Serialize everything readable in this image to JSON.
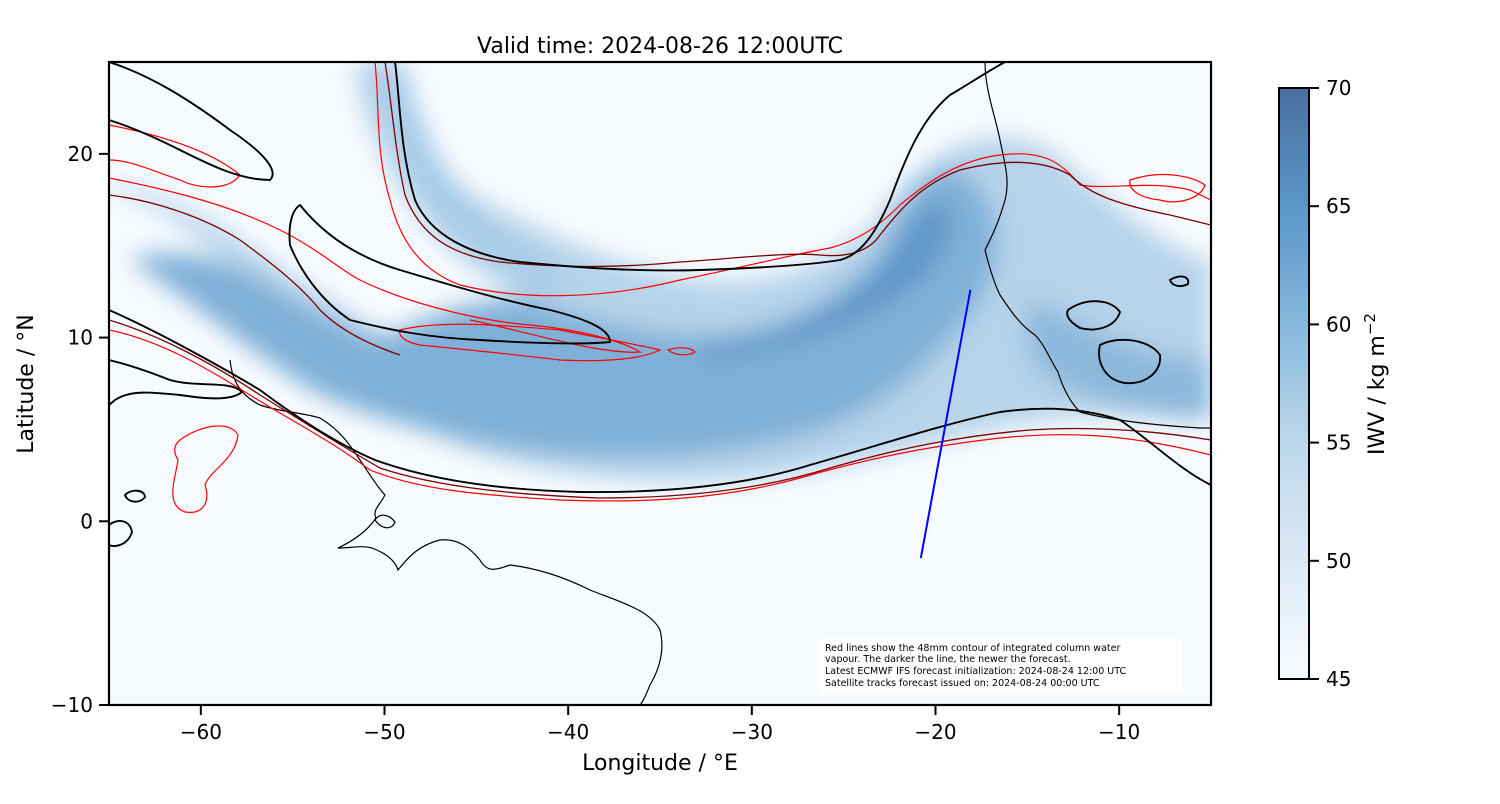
{
  "title": "Valid time: 2024-08-26 12:00UTC",
  "x_axis": {
    "label": "Longitude / °E",
    "range": [
      -65,
      -5
    ],
    "ticks": [
      -60,
      -50,
      -40,
      -30,
      -20,
      -10
    ],
    "tick_labels": [
      "−60",
      "−50",
      "−40",
      "−30",
      "−20",
      "−10"
    ]
  },
  "y_axis": {
    "label": "Latitude / °N",
    "range": [
      -10,
      25
    ],
    "ticks": [
      -10,
      0,
      10,
      20
    ],
    "tick_labels": [
      "−10",
      "0",
      "10",
      "20"
    ]
  },
  "colorbar": {
    "label": "IWV / kg m",
    "label_sup": "−2",
    "range": [
      45,
      70
    ],
    "ticks": [
      45,
      50,
      55,
      60,
      65,
      70
    ],
    "tick_labels": [
      "45",
      "50",
      "55",
      "60",
      "65",
      "70"
    ],
    "colormap": "Blues",
    "color_low": "#f7fbff",
    "color_high": "#4a6fa0"
  },
  "note": {
    "lines": [
      "Red lines show the 48mm contour of integrated column water",
      "vapour. The darker the line, the newer the forecast.",
      "Latest ECMWF IFS forecast initialization: 2024-08-24 12:00 UTC",
      "Satellite tracks forecast issued on: 2024-08-24 00:00 UTC"
    ]
  },
  "satellite_track": {
    "color": "#0000ff",
    "start": {
      "lon": -20.8,
      "lat": -2.0
    },
    "end": {
      "lon": -18.1,
      "lat": 12.6
    }
  },
  "contour_colors": {
    "newest": "#000000",
    "newer": "#3a0000",
    "older": "#8b0000",
    "oldest": "#ff0000"
  },
  "chart_data": {
    "type": "heatmap",
    "title": "Valid time: 2024-08-26 12:00UTC",
    "xlabel": "Longitude / °E",
    "ylabel": "Latitude / °N",
    "xlim": [
      -65,
      -5
    ],
    "ylim": [
      -10,
      25
    ],
    "colorbar_label": "IWV / kg m−2",
    "colorbar_range": [
      45,
      70
    ],
    "grid": false
  }
}
